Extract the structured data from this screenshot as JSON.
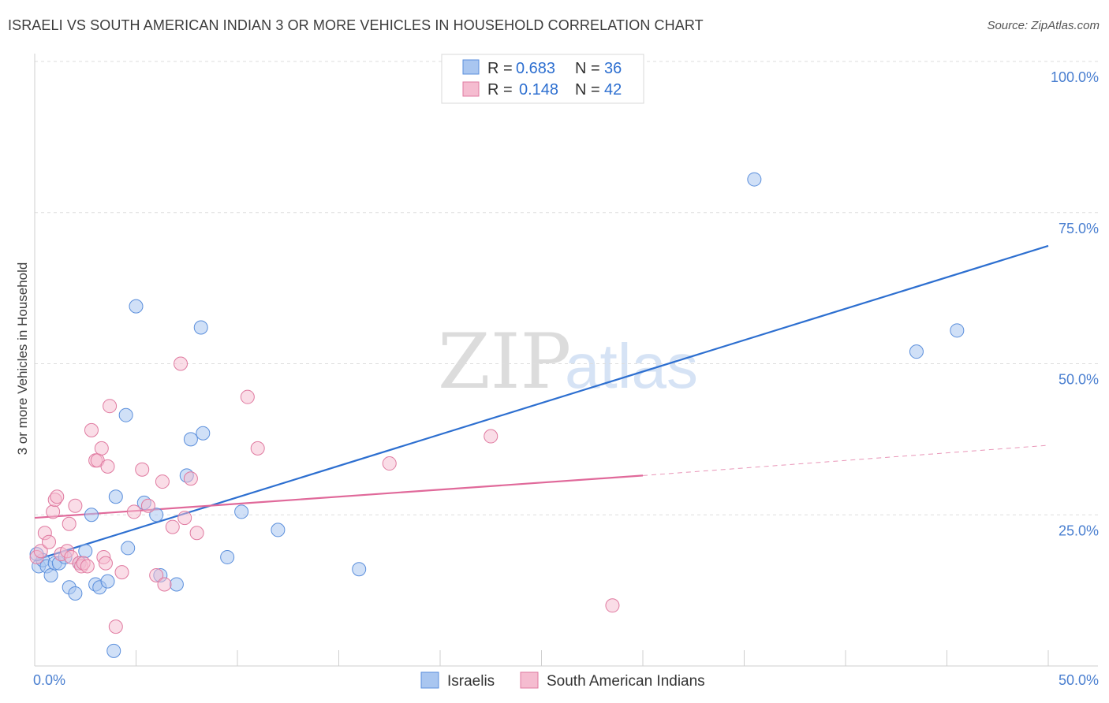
{
  "title": "ISRAELI VS SOUTH AMERICAN INDIAN 3 OR MORE VEHICLES IN HOUSEHOLD CORRELATION CHART",
  "source": "Source: ZipAtlas.com",
  "watermark": {
    "zip": "ZIP",
    "atlas": "atlas"
  },
  "colors": {
    "israelis": "#5b8fdc",
    "israelis_fill": "#a9c6f0",
    "sai": "#e07aa0",
    "sai_fill": "#f5bcd0",
    "blue_line": "#2d6fd0",
    "pink_line": "#e0699a",
    "tick": "#4a7fd0",
    "grid": "#dddddd"
  },
  "legend": {
    "row1": {
      "r_label": "R = ",
      "r_value": "0.683",
      "n_label": "N = ",
      "n_value": "36"
    },
    "row2": {
      "r_label": "R = ",
      "r_value": "0.148",
      "n_label": "N = ",
      "n_value": "42"
    }
  },
  "chart_data": {
    "type": "scatter",
    "title": "ISRAELI VS SOUTH AMERICAN INDIAN 3 OR MORE VEHICLES IN HOUSEHOLD CORRELATION CHART",
    "xlabel": "",
    "ylabel": "3 or more Vehicles in Household",
    "xlim": [
      0,
      50
    ],
    "ylim": [
      0,
      100
    ],
    "x_tick_labels": [
      "0.0%",
      "50.0%"
    ],
    "y_tick_labels": [
      {
        "value": 100,
        "label": "100.0%"
      },
      {
        "value": 75,
        "label": "75.0%"
      },
      {
        "value": 50,
        "label": "50.0%"
      },
      {
        "value": 25,
        "label": "25.0%"
      }
    ],
    "grid": true,
    "legend_position": "top-center",
    "series": [
      {
        "name": "Israelis",
        "points": [
          [
            0.2,
            16.5
          ],
          [
            0.4,
            17.5
          ],
          [
            0.6,
            16.5
          ],
          [
            0.8,
            15.0
          ],
          [
            1.0,
            17.0
          ],
          [
            1.2,
            17.0
          ],
          [
            1.5,
            18.0
          ],
          [
            1.7,
            13.0
          ],
          [
            2.0,
            12.0
          ],
          [
            2.2,
            17.0
          ],
          [
            2.5,
            19.0
          ],
          [
            2.8,
            25.0
          ],
          [
            3.0,
            13.5
          ],
          [
            3.2,
            13.0
          ],
          [
            3.6,
            14.0
          ],
          [
            3.9,
            2.5
          ],
          [
            4.0,
            28.0
          ],
          [
            4.5,
            41.5
          ],
          [
            4.6,
            19.5
          ],
          [
            5.0,
            59.5
          ],
          [
            5.4,
            27.0
          ],
          [
            6.0,
            25.0
          ],
          [
            6.2,
            15.0
          ],
          [
            7.0,
            13.5
          ],
          [
            7.5,
            31.5
          ],
          [
            7.7,
            37.5
          ],
          [
            8.2,
            56.0
          ],
          [
            8.3,
            38.5
          ],
          [
            9.5,
            18.0
          ],
          [
            10.2,
            25.5
          ],
          [
            12.0,
            22.5
          ],
          [
            16.0,
            16.0
          ],
          [
            35.5,
            80.5
          ],
          [
            43.5,
            52.0
          ],
          [
            45.5,
            55.5
          ],
          [
            0.1,
            18.5
          ]
        ]
      },
      {
        "name": "South American Indians",
        "points": [
          [
            0.1,
            18.0
          ],
          [
            0.3,
            19.0
          ],
          [
            0.5,
            22.0
          ],
          [
            0.7,
            20.5
          ],
          [
            0.9,
            25.5
          ],
          [
            1.0,
            27.5
          ],
          [
            1.1,
            28.0
          ],
          [
            1.3,
            18.5
          ],
          [
            1.6,
            19.0
          ],
          [
            1.7,
            23.5
          ],
          [
            1.8,
            18.0
          ],
          [
            2.0,
            26.5
          ],
          [
            2.2,
            17.0
          ],
          [
            2.3,
            16.5
          ],
          [
            2.4,
            17.0
          ],
          [
            2.6,
            16.5
          ],
          [
            2.8,
            39.0
          ],
          [
            3.0,
            34.0
          ],
          [
            3.1,
            34.0
          ],
          [
            3.3,
            36.0
          ],
          [
            3.4,
            18.0
          ],
          [
            3.5,
            17.0
          ],
          [
            3.6,
            33.0
          ],
          [
            3.7,
            43.0
          ],
          [
            4.0,
            6.5
          ],
          [
            4.3,
            15.5
          ],
          [
            4.9,
            25.5
          ],
          [
            5.3,
            32.5
          ],
          [
            5.6,
            26.5
          ],
          [
            6.0,
            15.0
          ],
          [
            6.3,
            30.5
          ],
          [
            6.4,
            13.5
          ],
          [
            6.8,
            23.0
          ],
          [
            7.2,
            50.0
          ],
          [
            7.4,
            24.5
          ],
          [
            7.7,
            31.0
          ],
          [
            8.0,
            22.0
          ],
          [
            10.5,
            44.5
          ],
          [
            11.0,
            36.0
          ],
          [
            17.5,
            33.5
          ],
          [
            22.5,
            38.0
          ],
          [
            28.5,
            10.0
          ]
        ]
      }
    ],
    "trend_lines": [
      {
        "series": "Israelis",
        "x": [
          0,
          50
        ],
        "y": [
          17.5,
          69.5
        ],
        "style": "solid"
      },
      {
        "series": "South American Indians",
        "x": [
          0,
          30
        ],
        "y": [
          24.5,
          31.5
        ],
        "style": "solid"
      },
      {
        "series": "South American Indians",
        "x": [
          30,
          50
        ],
        "y": [
          31.5,
          36.5
        ],
        "style": "dashed"
      }
    ]
  }
}
